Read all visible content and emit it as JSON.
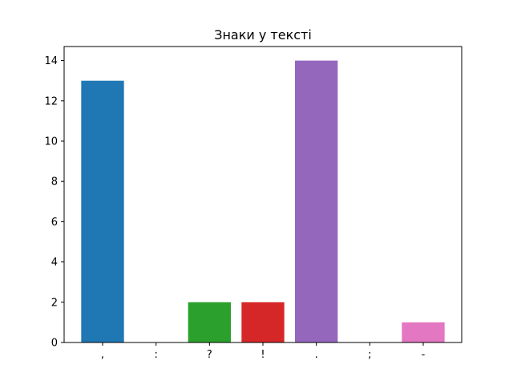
{
  "chart_data": {
    "type": "bar",
    "title": "Знаки у тексті",
    "xlabel": "",
    "ylabel": "",
    "categories": [
      ",",
      ":",
      "?",
      "!",
      ".",
      ";",
      "-"
    ],
    "values": [
      13,
      0,
      2,
      2,
      14,
      0,
      1
    ],
    "colors": [
      "#1f77b4",
      "#ff7f0e",
      "#2ca02c",
      "#d62728",
      "#9467bd",
      "#8c564b",
      "#e377c2"
    ],
    "ylim": [
      0,
      14.7
    ],
    "yticks": [
      0,
      2,
      4,
      6,
      8,
      10,
      12,
      14
    ],
    "grid": false,
    "legend": false
  }
}
